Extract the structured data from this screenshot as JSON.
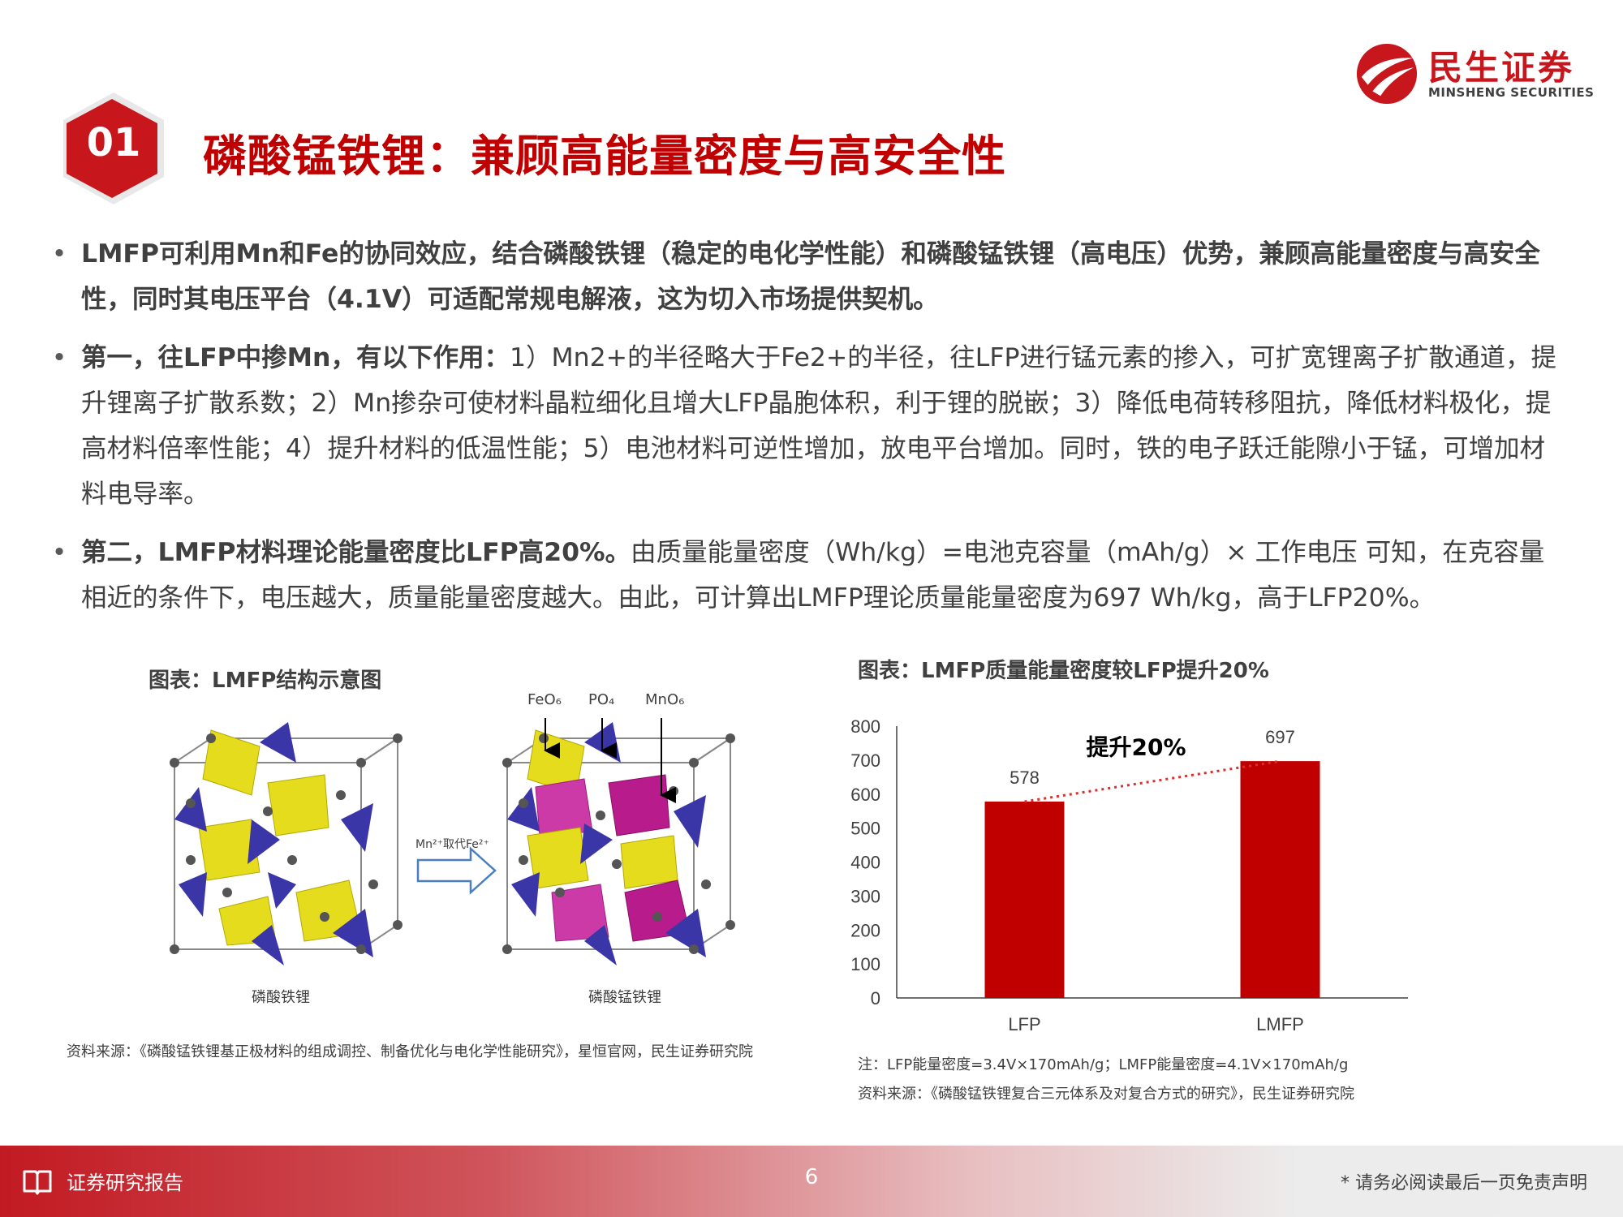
{
  "logo": {
    "name_cn": "民生证券",
    "name_en": "MINSHENG SECURITIES"
  },
  "title": {
    "number": "01",
    "text": "磷酸锰铁锂：兼顾高能量密度与高安全性"
  },
  "bullets": [
    {
      "bold": "LMFP可利用Mn和Fe的协同效应，结合磷酸铁锂（稳定的电化学性能）和磷酸锰铁锂（高电压）优势，兼顾高能量密度与高安全性，同时其电压平台（4.1V）可适配常规电解液，这为切入市场提供契机。",
      "text": ""
    },
    {
      "bold": "第一，往LFP中掺Mn，有以下作用：",
      "text": "1）Mn2+的半径略大于Fe2+的半径，往LFP进行锰元素的掺入，可扩宽锂离子扩散通道，提升锂离子扩散系数；2）Mn掺杂可使材料晶粒细化且增大LFP晶胞体积，利于锂的脱嵌；3）降低电荷转移阻抗，降低材料极化，提高材料倍率性能；4）提升材料的低温性能；5）电池材料可逆性增加，放电平台增加。同时，铁的电子跃迁能隙小于锰，可增加材料电导率。"
    },
    {
      "bold": "第二，LMFP材料理论能量密度比LFP高20%。",
      "text": "由质量能量密度（Wh/kg）=电池克容量（mAh/g）× 工作电压 可知，在克容量相近的条件下，电压越大，质量能量密度越大。由此，可计算出LMFP理论质量能量密度为697 Wh/kg，高于LFP20%。"
    }
  ],
  "figure_left": {
    "title": "图表：LMFP结构示意图",
    "label_left": "磷酸铁锂",
    "label_right": "磷酸锰铁锂",
    "arrow_label": "Mn²⁺取代Fe²⁺",
    "legend": [
      "FeO₆",
      "PO₄",
      "MnO₆"
    ],
    "source": "资料来源：《磷酸锰铁锂基正极材料的组成调控、制备优化与电化学性能研究》，星恒官网，民生证券研究院"
  },
  "figure_right": {
    "title": "图表：LMFP质量能量密度较LFP提升20%",
    "note": "注：LFP能量密度=3.4V×170mAh/g；LMFP能量密度=4.1V×170mAh/g",
    "source": "资料来源：《磷酸锰铁锂复合三元体系及对复合方式的研究》，民生证券研究院"
  },
  "chart_data": {
    "type": "bar",
    "categories": [
      "LFP",
      "LMFP"
    ],
    "values": [
      578,
      697
    ],
    "value_labels": [
      "578",
      "697"
    ],
    "ylim": [
      0,
      800
    ],
    "yticks": [
      "0",
      "100",
      "200",
      "300",
      "400",
      "500",
      "600",
      "700",
      "800"
    ],
    "annotation": "提升20%",
    "bar_color": "#c00000",
    "trend_line": "dotted-red"
  },
  "footer": {
    "left": "证券研究报告",
    "page": "6",
    "right": "* 请务必阅读最后一页免责声明"
  },
  "colors": {
    "brand_red": "#c8161d",
    "title_red": "#c00000"
  }
}
